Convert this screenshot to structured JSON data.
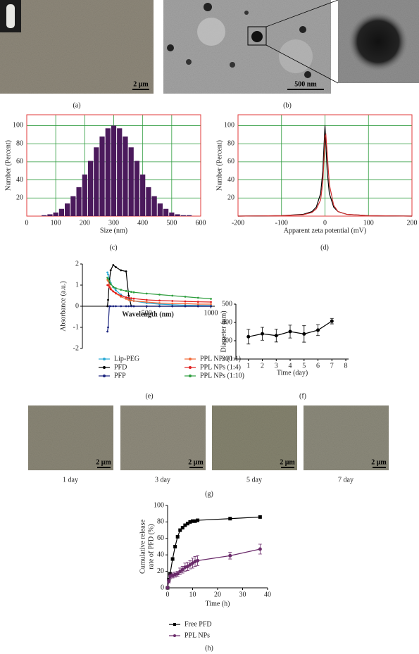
{
  "images": [
    {
      "panel_label": "(a)",
      "scale_bar": "2 μm"
    },
    {
      "panel_label": "(b)",
      "scale_bar": "500 nm"
    },
    {
      "panel_label": "(g)",
      "frames": [
        {
          "caption": "1 day",
          "scale_bar": "2 μm"
        },
        {
          "caption": "3 day",
          "scale_bar": "2 μm"
        },
        {
          "caption": "5 day",
          "scale_bar": "2 μm"
        },
        {
          "caption": "7 day",
          "scale_bar": "2 μm"
        }
      ]
    }
  ],
  "chart_data": [
    {
      "type": "histogram",
      "panel_label": "(c)",
      "xlabel": "Size (nm)",
      "ylabel": "Number (Percent)",
      "bins": [
        50,
        70,
        90,
        110,
        130,
        150,
        170,
        190,
        210,
        230,
        250,
        270,
        290,
        310,
        330,
        350,
        370,
        390,
        410,
        430,
        450,
        470,
        490,
        510,
        530,
        550,
        570
      ],
      "values": [
        1,
        2,
        4,
        8,
        14,
        22,
        32,
        46,
        61,
        76,
        88,
        97,
        100,
        97,
        88,
        76,
        61,
        46,
        32,
        22,
        14,
        8,
        4,
        2,
        1,
        1
      ],
      "color": "#4b1a5c",
      "xlim": [
        0,
        600
      ],
      "xticks": [
        0,
        100,
        200,
        300,
        400,
        500,
        600
      ],
      "ylim": [
        0,
        112
      ],
      "yticks": [
        20,
        40,
        60,
        80,
        100
      ],
      "grid": true,
      "grid_color": "#2a9a3a",
      "frame_color": "#e03a3a"
    },
    {
      "type": "line",
      "panel_label": "(d)",
      "xlabel": "Apparent zeta potential (mV)",
      "ylabel": "Number (Percent)",
      "x": [
        -200,
        -100,
        -50,
        -30,
        -20,
        -10,
        -5,
        -2,
        0,
        2,
        5,
        10,
        20,
        30,
        50,
        100,
        200
      ],
      "series": [
        {
          "color": "#000000",
          "values": [
            0,
            0.5,
            2,
            5,
            10,
            25,
            50,
            80,
            100,
            80,
            50,
            25,
            10,
            5,
            2,
            0.5,
            0
          ]
        },
        {
          "color": "#d03030",
          "values": [
            0,
            0.5,
            1.5,
            4,
            8,
            18,
            38,
            65,
            88,
            90,
            70,
            35,
            12,
            5,
            2,
            0.5,
            0
          ]
        }
      ],
      "xlim": [
        -200,
        200
      ],
      "xticks": [
        -200,
        -100,
        0,
        100,
        200
      ],
      "ylim": [
        0,
        112
      ],
      "yticks": [
        20,
        40,
        60,
        80,
        100
      ],
      "grid": true,
      "grid_color": "#2a9a3a",
      "frame_color": "#e03a3a"
    },
    {
      "type": "line",
      "panel_label": "(e)",
      "xlabel": "Wavelength (nm)",
      "ylabel": "Absorbance (a.u.)",
      "x": [
        195,
        200,
        210,
        220,
        240,
        260,
        300,
        340,
        360,
        380,
        400,
        500,
        600,
        700,
        800,
        900,
        1000
      ],
      "series": [
        {
          "name": "Lip-PEG",
          "color": "#29a9d6",
          "marker": "circle",
          "values": [
            1.6,
            1.5,
            1.3,
            1.1,
            0.9,
            0.75,
            0.55,
            0.4,
            0.35,
            0.3,
            0.25,
            0.15,
            0.1,
            0.07,
            0.05,
            0.04,
            0.03
          ]
        },
        {
          "name": "PFD",
          "color": "#000000",
          "marker": "circle",
          "values": [
            0,
            0.3,
            1.2,
            1.7,
            1.95,
            1.85,
            1.7,
            1.65,
            0.5,
            0.02,
            0,
            0,
            0,
            0,
            0,
            0,
            0
          ]
        },
        {
          "name": "PFP",
          "color": "#1a237e",
          "marker": "circle",
          "values": [
            -1.2,
            -1.0,
            0,
            0,
            0,
            0,
            0,
            0,
            0,
            0,
            0,
            0,
            0,
            0,
            0,
            0,
            0
          ]
        },
        {
          "name": "PPL NPs (1:1)",
          "color": "#f26b3a",
          "marker": "circle",
          "values": [
            1.25,
            1.2,
            1.0,
            0.85,
            0.7,
            0.6,
            0.45,
            0.35,
            0.3,
            0.28,
            0.25,
            0.2,
            0.15,
            0.13,
            0.12,
            0.1,
            0.1
          ]
        },
        {
          "name": "PPL NPs (1:4)",
          "color": "#e02020",
          "marker": "circle",
          "values": [
            1.0,
            1.0,
            0.9,
            0.8,
            0.7,
            0.62,
            0.5,
            0.42,
            0.4,
            0.38,
            0.36,
            0.3,
            0.27,
            0.25,
            0.23,
            0.21,
            0.2
          ]
        },
        {
          "name": "PPL NPs (1:10)",
          "color": "#2e9e3e",
          "marker": "circle",
          "values": [
            1.35,
            1.3,
            1.2,
            1.05,
            0.92,
            0.85,
            0.78,
            0.72,
            0.7,
            0.68,
            0.66,
            0.6,
            0.55,
            0.5,
            0.45,
            0.4,
            0.35
          ]
        }
      ],
      "xlim": [
        0,
        1030
      ],
      "xticks": [
        500,
        1000
      ],
      "ylim": [
        -2,
        2
      ],
      "yticks": [
        -2,
        -1,
        0,
        1,
        2
      ]
    },
    {
      "type": "line",
      "panel_label": "(f)",
      "xlabel": "Time (day)",
      "ylabel": "Diameter (nm)",
      "x": [
        1,
        2,
        3,
        4,
        5,
        6,
        7
      ],
      "series": [
        {
          "color": "#000000",
          "marker": "circle",
          "values": [
            322,
            338,
            328,
            350,
            337,
            358,
            407
          ],
          "errors": [
            40,
            35,
            35,
            35,
            45,
            30,
            15
          ]
        }
      ],
      "xlim": [
        0.1,
        8.2
      ],
      "xticks": [
        1,
        2,
        3,
        4,
        5,
        6,
        7,
        8
      ],
      "ylim": [
        200,
        500
      ],
      "yticks": [
        200,
        300,
        400,
        500
      ]
    },
    {
      "type": "line",
      "panel_label": "(h)",
      "xlabel": "Time (h)",
      "ylabel": [
        "Cumulative release",
        "rate of PFD (%)"
      ],
      "x": [
        0,
        0.5,
        1,
        2,
        3,
        4,
        5,
        6,
        7,
        8,
        9,
        10,
        11,
        12,
        25,
        37
      ],
      "series": [
        {
          "name": "Free PFD",
          "color": "#000000",
          "marker": "square",
          "values": [
            0,
            10,
            17,
            35,
            50,
            62,
            70,
            73,
            76,
            78,
            80,
            81,
            81,
            82,
            84,
            86
          ]
        },
        {
          "name": "PPL NPs",
          "color": "#6a2a6a",
          "marker": "circle",
          "values": [
            0,
            8,
            14,
            15,
            16,
            17,
            20,
            22,
            25,
            26,
            28,
            30,
            32,
            33,
            39,
            47
          ],
          "errors": [
            0,
            2,
            3,
            3,
            3,
            3,
            4,
            4,
            5,
            5,
            5,
            6,
            6,
            6,
            4,
            6
          ]
        }
      ],
      "xlim": [
        0,
        40
      ],
      "xticks": [
        0,
        10,
        20,
        30,
        40
      ],
      "ylim": [
        0,
        100
      ],
      "yticks": [
        0,
        20,
        40,
        60,
        80,
        100
      ]
    }
  ]
}
